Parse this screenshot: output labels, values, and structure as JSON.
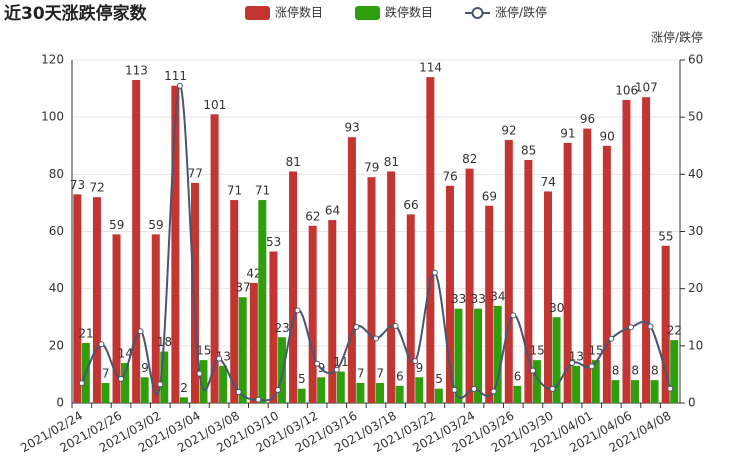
{
  "chart_data": {
    "type": "bar-line",
    "title": "近30天涨跌停家数",
    "categories": [
      "2021/02/24",
      null,
      "2021/02/26",
      null,
      "2021/03/02",
      null,
      "2021/03/04",
      null,
      "2021/03/08",
      null,
      "2021/03/10",
      null,
      "2021/03/12",
      null,
      "2021/03/16",
      null,
      "2021/03/18",
      null,
      "2021/03/22",
      null,
      "2021/03/24",
      null,
      "2021/03/26",
      null,
      "2021/03/30",
      null,
      "2021/04/01",
      null,
      "2021/04/06",
      null,
      "2021/04/08"
    ],
    "series": [
      {
        "name": "涨停数目",
        "color": "#c23531",
        "type": "bar",
        "values": [
          73,
          72,
          59,
          113,
          59,
          111,
          77,
          101,
          71,
          42,
          53,
          81,
          62,
          64,
          93,
          79,
          81,
          66,
          114,
          76,
          82,
          69,
          92,
          85,
          74,
          91,
          96,
          90,
          106,
          107,
          55
        ]
      },
      {
        "name": "跌停数目",
        "color": "#2f9e0c",
        "type": "bar",
        "values": [
          21,
          7,
          14,
          9,
          18,
          2,
          15,
          13,
          37,
          71,
          23,
          5,
          9,
          11,
          7,
          7,
          6,
          9,
          5,
          33,
          33,
          34,
          6,
          15,
          30,
          13,
          15,
          8,
          8,
          8,
          22
        ]
      },
      {
        "name": "涨停/跌停",
        "color": "#4a5670",
        "type": "line",
        "axis": "y2",
        "values": [
          3.48,
          10.29,
          4.21,
          12.56,
          3.28,
          55.5,
          5.13,
          7.77,
          1.92,
          0.59,
          2.3,
          16.2,
          6.89,
          5.82,
          13.29,
          11.29,
          13.5,
          7.33,
          22.8,
          2.3,
          2.48,
          2.03,
          15.33,
          5.67,
          2.47,
          7.0,
          6.4,
          11.25,
          13.25,
          13.38,
          2.5
        ]
      }
    ],
    "ylim": [
      0,
      120
    ],
    "yticks": [
      0,
      20,
      40,
      60,
      80,
      100,
      120
    ],
    "y2lim": [
      0,
      60
    ],
    "y2ticks": [
      0,
      10,
      20,
      30,
      40,
      50,
      60
    ],
    "y2label": "涨停/跌停",
    "grid": true
  }
}
